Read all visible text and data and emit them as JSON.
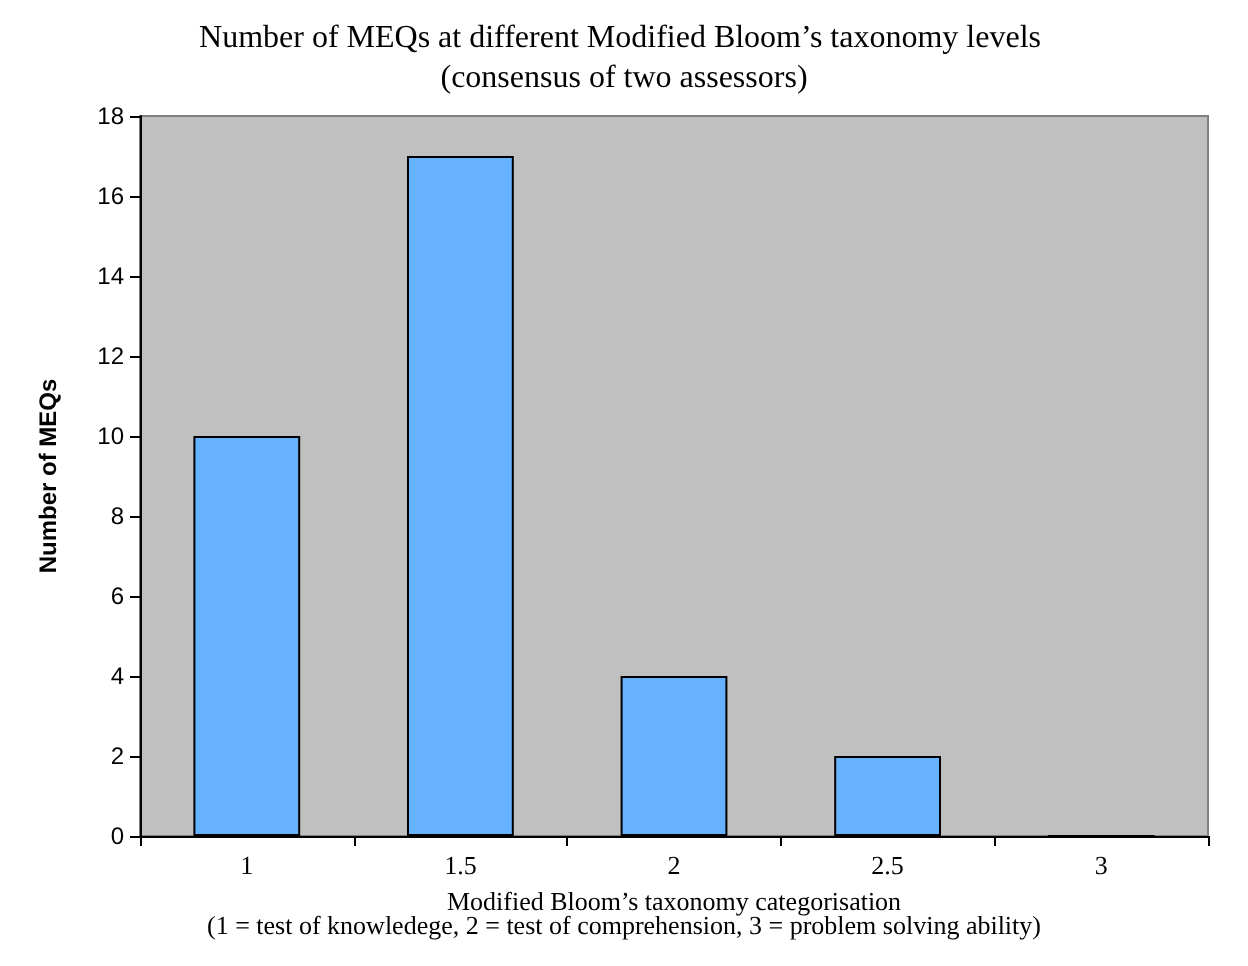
{
  "chart_data": {
    "type": "bar",
    "title": "Number of MEQs at different Modified Bloom’s taxonomy levels (consensus of two assessors)",
    "xlabel": "Modified Bloom’s taxonomy categorisation",
    "ylabel": "Number of MEQs",
    "annotations": [
      "(1 = test of knowledege, 2 = test of comprehension, 3 = problem solving ability)"
    ],
    "categories": [
      "1",
      "1.5",
      "2",
      "2.5",
      "3"
    ],
    "values": [
      10,
      17,
      4,
      2,
      0
    ],
    "color": "#66b2ff",
    "ylim": [
      0,
      18
    ],
    "yticks": [
      0,
      2,
      4,
      6,
      8,
      10,
      12,
      14,
      16,
      18
    ]
  }
}
